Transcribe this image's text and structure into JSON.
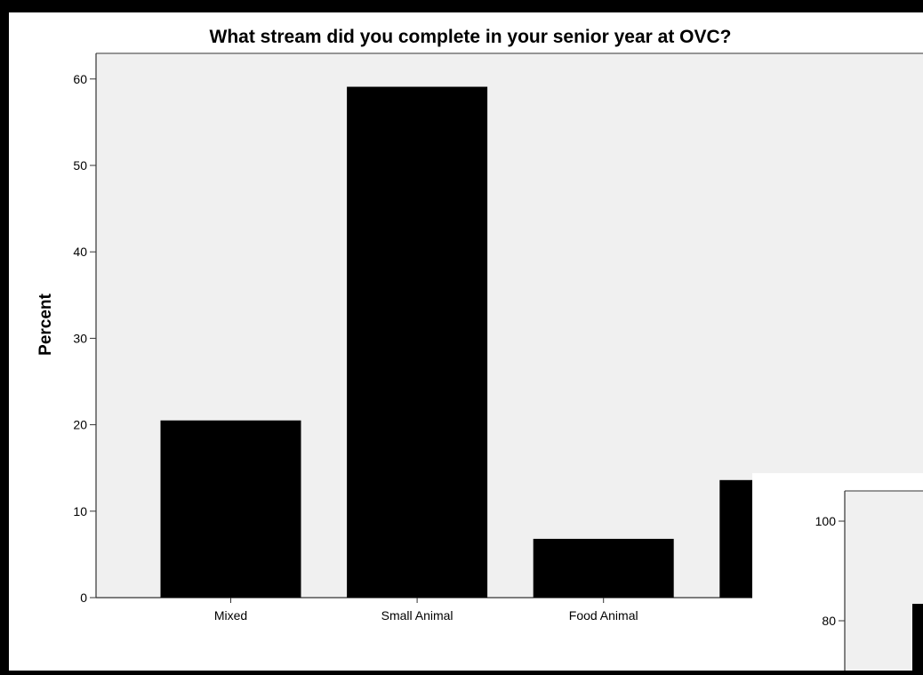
{
  "chart_data": [
    {
      "type": "bar",
      "title": "What stream did you complete in your senior year at OVC?",
      "xlabel": "",
      "ylabel": "Percent",
      "categories": [
        "Mixed",
        "Small Animal",
        "Food Animal",
        ""
      ],
      "values": [
        20.5,
        59.1,
        6.8,
        13.6
      ],
      "ylim": [
        0,
        62
      ],
      "yticks": [
        "0",
        "10",
        "20",
        "30",
        "40",
        "50",
        "60"
      ],
      "grid": false,
      "legend": "none",
      "colors": {
        "bar": "#000000",
        "plot_bg": "#f0f0f0",
        "panel_bg": "#ffffff"
      }
    },
    {
      "type": "bar",
      "title": "",
      "ylabel": "",
      "categories": [
        ""
      ],
      "values": [
        83.4
      ],
      "ylim": [
        0,
        105
      ],
      "yticks": [
        "80",
        "100"
      ],
      "grid": false,
      "legend": "none",
      "colors": {
        "bar": "#000000",
        "plot_bg": "#f0f0f0",
        "panel_bg": "#ffffff"
      }
    }
  ]
}
